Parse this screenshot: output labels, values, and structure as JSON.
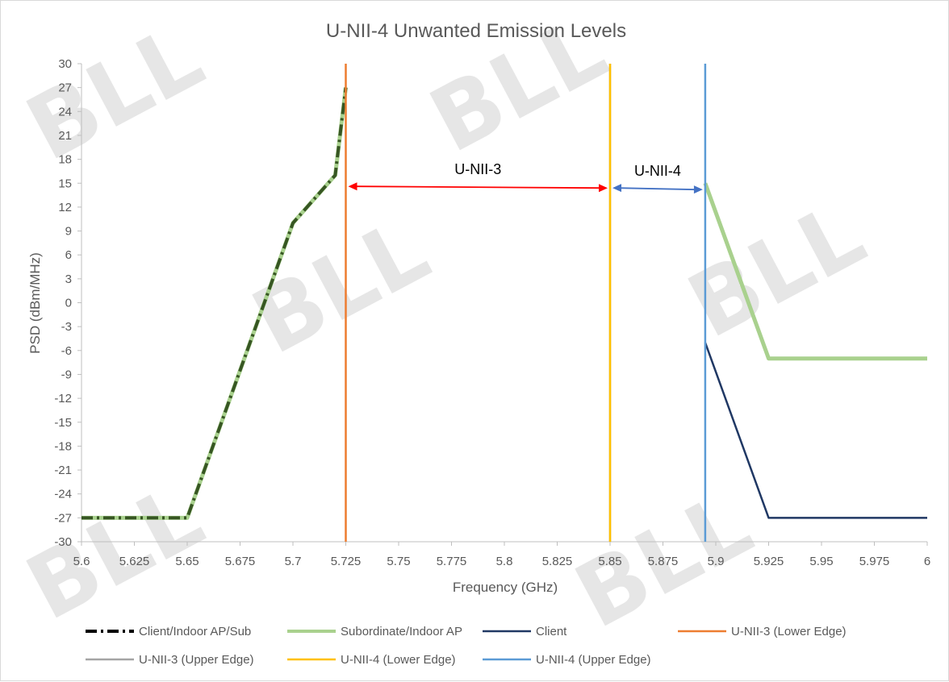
{
  "chart_data": {
    "type": "line",
    "title": "U-NII-4 Unwanted Emission Levels",
    "xlabel": "Frequency (GHz)",
    "ylabel": "PSD (dBm/MHz)",
    "xlim": [
      5.6,
      6.0
    ],
    "ylim": [
      -30,
      30
    ],
    "x_ticks": [
      "5.6",
      "5.625",
      "5.65",
      "5.675",
      "5.7",
      "5.725",
      "5.75",
      "5.775",
      "5.8",
      "5.825",
      "5.85",
      "5.875",
      "5.9",
      "5.925",
      "5.95",
      "5.975",
      "6"
    ],
    "y_ticks": [
      "30",
      "27",
      "24",
      "21",
      "18",
      "15",
      "12",
      "9",
      "6",
      "3",
      "0",
      "-3",
      "-6",
      "-9",
      "-12",
      "-15",
      "-18",
      "-21",
      "-24",
      "-27",
      "-30"
    ],
    "grid": false,
    "legend_position": "bottom",
    "series": [
      {
        "name": "Client/Indoor AP/Sub",
        "color": "#375623",
        "style": "dash-dot",
        "points": [
          [
            5.6,
            -27
          ],
          [
            5.65,
            -27
          ],
          [
            5.7,
            10
          ],
          [
            5.72,
            16
          ],
          [
            5.725,
            27
          ]
        ]
      },
      {
        "name": "Subordinate/Indoor AP",
        "color": "#a9d18e",
        "style": "solid-thick",
        "points": [
          [
            5.6,
            -27
          ],
          [
            5.65,
            -27
          ],
          [
            5.7,
            10
          ],
          [
            5.72,
            16
          ],
          [
            5.725,
            27
          ],
          [
            null,
            null
          ],
          [
            5.895,
            15
          ],
          [
            5.925,
            -7
          ],
          [
            6.0,
            -7
          ]
        ]
      },
      {
        "name": "Client",
        "color": "#203864",
        "style": "solid",
        "points": [
          [
            5.895,
            -5
          ],
          [
            5.925,
            -27
          ],
          [
            6.0,
            -27
          ]
        ]
      }
    ],
    "vertical_lines": [
      {
        "name": "U-NII-3 (Lower Edge)",
        "x": 5.725,
        "color": "#ed7d31"
      },
      {
        "name": "U-NII-3 (Upper Edge)",
        "x": 5.85,
        "color": "#a5a5a5"
      },
      {
        "name": "U-NII-4 (Lower Edge)",
        "x": 5.85,
        "color": "#ffc000"
      },
      {
        "name": "U-NII-4 (Upper Edge)",
        "x": 5.895,
        "color": "#5b9bd5"
      }
    ],
    "annotations": [
      {
        "text": "U-NII-3",
        "from": 5.725,
        "to": 5.85,
        "y": 14.5,
        "color": "#ff0000"
      },
      {
        "text": "U-NII-4",
        "from": 5.85,
        "to": 5.895,
        "y": 14.3,
        "color": "#4472c4"
      }
    ]
  },
  "legend": [
    {
      "label": "Client/Indoor AP/Sub",
      "color": "#000000",
      "style": "dash-dot"
    },
    {
      "label": "Subordinate/Indoor AP",
      "color": "#a9d18e",
      "style": "solid-thick"
    },
    {
      "label": "Client",
      "color": "#203864",
      "style": "solid"
    },
    {
      "label": "U-NII-3 (Lower Edge)",
      "color": "#ed7d31",
      "style": "solid"
    },
    {
      "label": "U-NII-3 (Upper Edge)",
      "color": "#a5a5a5",
      "style": "solid"
    },
    {
      "label": "U-NII-4 (Lower Edge)",
      "color": "#ffc000",
      "style": "solid"
    },
    {
      "label": "U-NII-4 (Upper Edge)",
      "color": "#5b9bd5",
      "style": "solid"
    }
  ],
  "watermark": {
    "text": "BLL"
  }
}
